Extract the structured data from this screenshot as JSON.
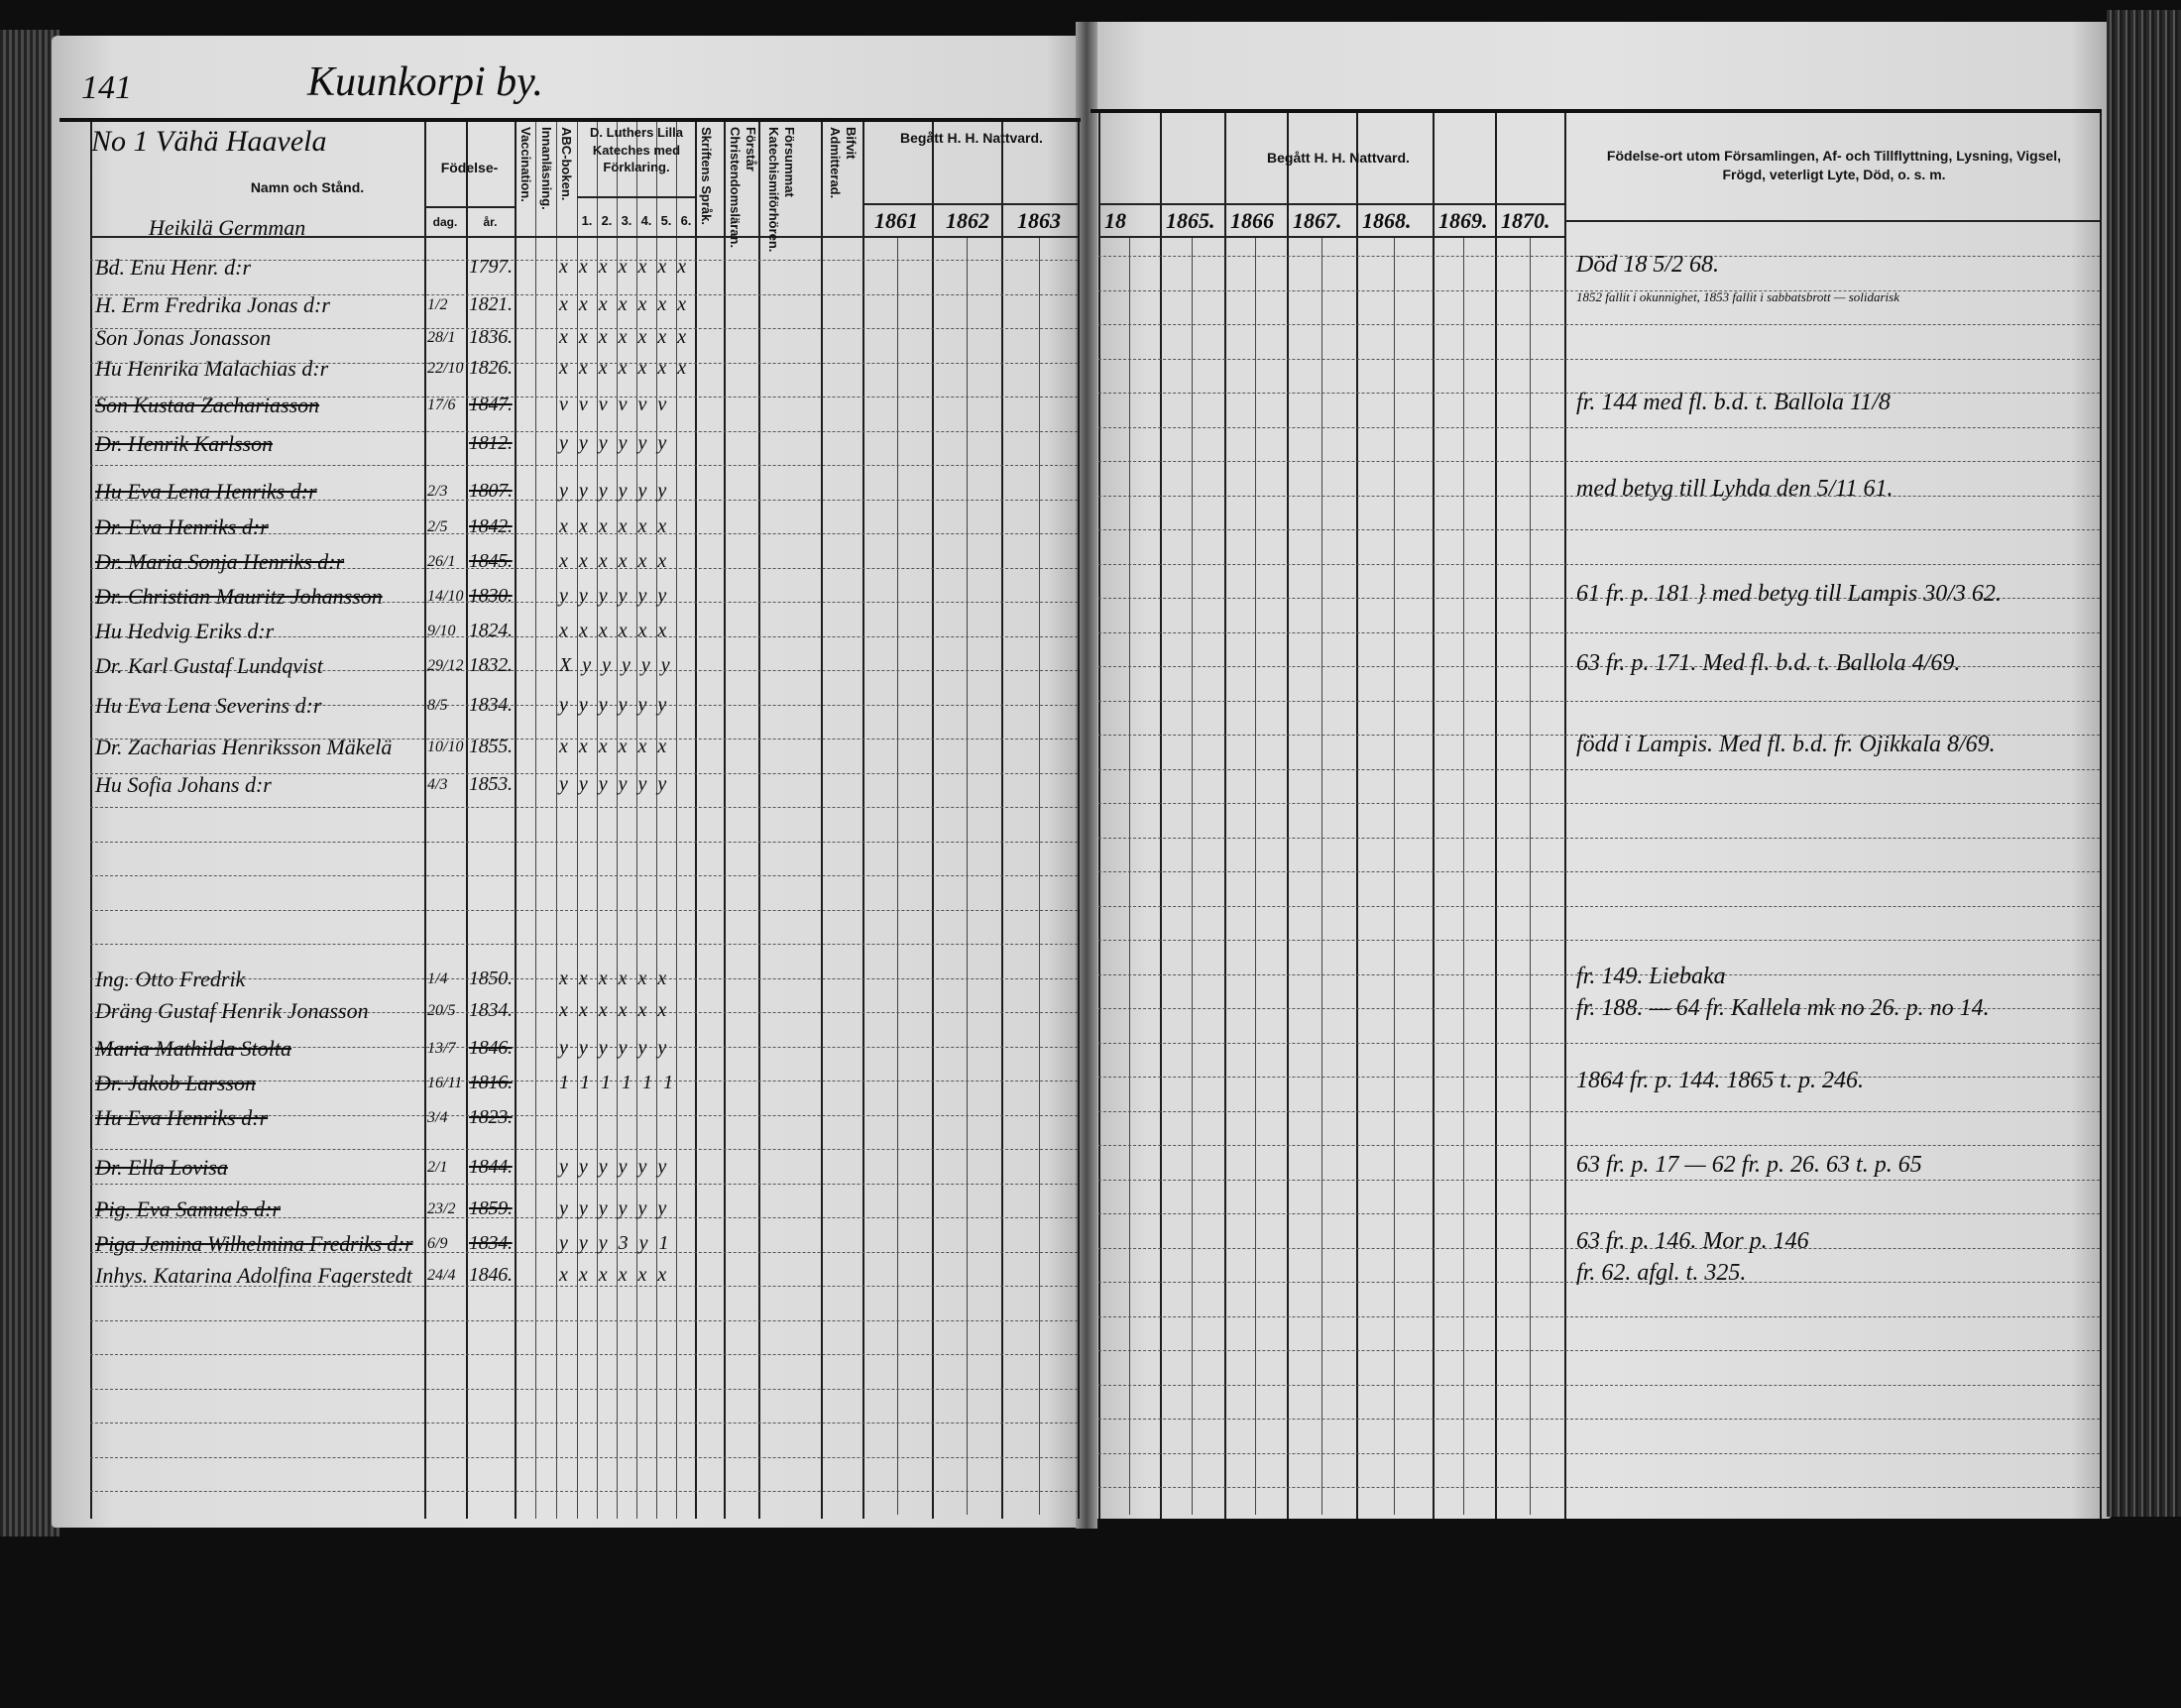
{
  "left_page": {
    "page_number": "141",
    "village_title": "Kuunkorpi by.",
    "household_label": "No 1 Vähä Haavela",
    "headers": {
      "name": "Namn och Stånd.",
      "birth": "Födelse-",
      "birth_day": "dag.",
      "birth_year": "år.",
      "vaccination": "Vaccination.",
      "reading": "Innanläsning.",
      "abc": "ABC-boken.",
      "catechism": "D. Luthers Lilla Kateches med Förklaring.",
      "catechism_cols": [
        "1.",
        "2.",
        "3.",
        "4.",
        "5.",
        "6."
      ],
      "scripture": "Skriftens Språk.",
      "christendom": "Förstår Christendomsläran.",
      "neglected": "Försummat Katechismiförhören.",
      "admitted": "Bifvit Admitterad.",
      "communion": "Begått H. H. Nattvard.",
      "communion_years": [
        "1861",
        "1862",
        "1863"
      ]
    },
    "rows": [
      {
        "name": "Heikilä Germman",
        "dag": "",
        "ar": "",
        "marks": "",
        "struck": false
      },
      {
        "name": "Bd. Enu Henr. d:r",
        "dag": "",
        "ar": "1797.",
        "marks": "x x x x x x x",
        "struck": false
      },
      {
        "name": "H. Erm Fredrika Jonas d:r",
        "dag": "1/2",
        "ar": "1821.",
        "marks": "x x x x x x x",
        "struck": false
      },
      {
        "name": "Son Jonas Jonasson",
        "dag": "28/1",
        "ar": "1836.",
        "marks": "x x x x x x x",
        "struck": false
      },
      {
        "name": "Hu Henrika Malachias d:r",
        "dag": "22/10",
        "ar": "1826.",
        "marks": "x x x x x x x",
        "struck": false
      },
      {
        "name": "Son Kustaa Zachariasson",
        "dag": "17/6",
        "ar": "1847.",
        "marks": "v v v v v v",
        "struck": true
      },
      {
        "name": "Dr. Henrik Karlsson",
        "dag": "",
        "ar": "1812.",
        "marks": "y y y y y y",
        "struck": true
      },
      {
        "name": "Hu Eva Lena Henriks d:r",
        "dag": "2/3",
        "ar": "1807.",
        "marks": "y y y y y y",
        "struck": true
      },
      {
        "name": "Dr. Eva Henriks d:r",
        "dag": "2/5",
        "ar": "1842.",
        "marks": "x x x x x x",
        "struck": true
      },
      {
        "name": "Dr. Maria Sonja Henriks d:r",
        "dag": "26/1",
        "ar": "1845.",
        "marks": "x x x x x x",
        "struck": true
      },
      {
        "name": "Dr. Christian Mauritz Johansson",
        "dag": "14/10",
        "ar": "1830.",
        "marks": "y y y y y y",
        "struck": true
      },
      {
        "name": "Hu Hedvig Eriks d:r",
        "dag": "9/10",
        "ar": "1824.",
        "marks": "x x x x x x",
        "struck": false
      },
      {
        "name": "Dr. Karl Gustaf Lundqvist",
        "dag": "29/12",
        "ar": "1832.",
        "marks": "X y y y y y",
        "struck": false
      },
      {
        "name": "Hu Eva Lena Severins d:r",
        "dag": "8/5",
        "ar": "1834.",
        "marks": "y y y y y y",
        "struck": false
      },
      {
        "name": "Dr. Zacharias Henriksson Mäkelä",
        "dag": "10/10",
        "ar": "1855.",
        "marks": "x x x x x x",
        "struck": false
      },
      {
        "name": "Hu Sofia Johans d:r",
        "dag": "4/3",
        "ar": "1853.",
        "marks": "y y y y y y",
        "struck": false
      },
      {
        "name": "Ing. Otto Fredrik",
        "dag": "1/4",
        "ar": "1850.",
        "marks": "x x x x x x",
        "struck": false
      },
      {
        "name": "Dräng Gustaf Henrik Jonasson",
        "dag": "20/5",
        "ar": "1834.",
        "marks": "x x x x x x",
        "struck": false
      },
      {
        "name": "Maria Mathilda Stolta",
        "dag": "13/7",
        "ar": "1846.",
        "marks": "y y y y y y",
        "struck": true
      },
      {
        "name": "Dr. Jakob Larsson",
        "dag": "16/11",
        "ar": "1816.",
        "marks": "1 1 1 1 1 1",
        "struck": true
      },
      {
        "name": "Hu Eva Henriks d:r",
        "dag": "3/4",
        "ar": "1823.",
        "marks": "",
        "struck": true
      },
      {
        "name": "Dr. Ella Lovisa",
        "dag": "2/1",
        "ar": "1844.",
        "marks": "y y y y y y",
        "struck": true
      },
      {
        "name": "Pig. Eva Samuels d:r",
        "dag": "23/2",
        "ar": "1859.",
        "marks": "y y y y y y",
        "struck": true
      },
      {
        "name": "Piga Jemina Wilhelmina Fredriks d:r",
        "dag": "6/9",
        "ar": "1834.",
        "marks": "y y y 3 y 1",
        "struck": true
      },
      {
        "name": "Inhys. Katarina Adolfina Fagerstedt",
        "dag": "24/4",
        "ar": "1846.",
        "marks": "x x x x x x",
        "struck": false
      }
    ]
  },
  "right_page": {
    "headers": {
      "communion": "Begått H. H. Nattvard.",
      "communion_years": [
        "18",
        "1865.",
        "1866",
        "1867.",
        "1868.",
        "1869.",
        "1870."
      ],
      "remarks": "Födelse-ort utom Församlingen, Af- och Tillflyttning, Lysning, Vigsel, Frögd, veterligt Lyte, Död, o. s. m."
    },
    "remarks": [
      {
        "row": 1,
        "text": "Död 18 5/2 68."
      },
      {
        "row": 2,
        "text": "1852 fallit i okunnighet, 1853 fallit i sabbatsbrott — solidarisk",
        "small": true
      },
      {
        "row": 5,
        "text": "fr. 144 med fl. b.d. t. Ballola 11/8"
      },
      {
        "row": 7,
        "text": "med betyg till Lyhda den 5/11 61."
      },
      {
        "row": 10,
        "text": "61 fr. p. 181 } med betyg till Lampis 30/3 62."
      },
      {
        "row": 12,
        "text": "63 fr. p. 171. Med fl. b.d. t. Ballola 4/69."
      },
      {
        "row": 14,
        "text": "född i Lampis. Med fl. b.d. fr. Ojikkala 8/69."
      },
      {
        "row": 16,
        "text": "fr. 149. Liebaka"
      },
      {
        "row": 17,
        "text": "fr. 188. — 64 fr. Kallela mk no 26. p. no 14."
      },
      {
        "row": 19,
        "text": "1864 fr. p. 144. 1865 t. p. 246."
      },
      {
        "row": 21,
        "text": "63 fr. p. 17 — 62 fr. p. 26. 63 t. p. 65"
      },
      {
        "row": 23,
        "text": "63 fr. p. 146. Mor p. 146"
      },
      {
        "row": 24,
        "text": "fr. 62. afgl. t. 325."
      }
    ]
  }
}
